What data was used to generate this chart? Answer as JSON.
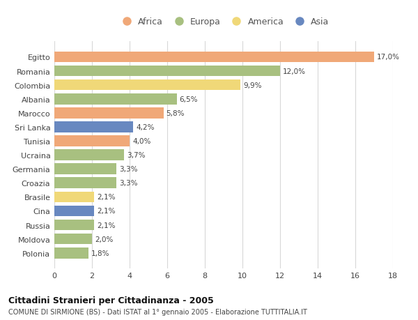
{
  "categories": [
    "Egitto",
    "Romania",
    "Colombia",
    "Albania",
    "Marocco",
    "Sri Lanka",
    "Tunisia",
    "Ucraina",
    "Germania",
    "Croazia",
    "Brasile",
    "Cina",
    "Russia",
    "Moldova",
    "Polonia"
  ],
  "values": [
    17.0,
    12.0,
    9.9,
    6.5,
    5.8,
    4.2,
    4.0,
    3.7,
    3.3,
    3.3,
    2.1,
    2.1,
    2.1,
    2.0,
    1.8
  ],
  "labels": [
    "17,0%",
    "12,0%",
    "9,9%",
    "6,5%",
    "5,8%",
    "4,2%",
    "4,0%",
    "3,7%",
    "3,3%",
    "3,3%",
    "2,1%",
    "2,1%",
    "2,1%",
    "2,0%",
    "1,8%"
  ],
  "continents": [
    "Africa",
    "Europa",
    "America",
    "Europa",
    "Africa",
    "Asia",
    "Africa",
    "Europa",
    "Europa",
    "Europa",
    "America",
    "Asia",
    "Europa",
    "Europa",
    "Europa"
  ],
  "colors": {
    "Africa": "#F0A878",
    "Europa": "#A8C080",
    "America": "#F0D878",
    "Asia": "#6888C0"
  },
  "legend_order": [
    "Africa",
    "Europa",
    "America",
    "Asia"
  ],
  "xlim": [
    0,
    18
  ],
  "xticks": [
    0,
    2,
    4,
    6,
    8,
    10,
    12,
    14,
    16,
    18
  ],
  "title": "Cittadini Stranieri per Cittadinanza - 2005",
  "subtitle": "COMUNE DI SIRMIONE (BS) - Dati ISTAT al 1° gennaio 2005 - Elaborazione TUTTITALIA.IT",
  "background_color": "#ffffff",
  "grid_color": "#d8d8d8",
  "bar_height": 0.78
}
